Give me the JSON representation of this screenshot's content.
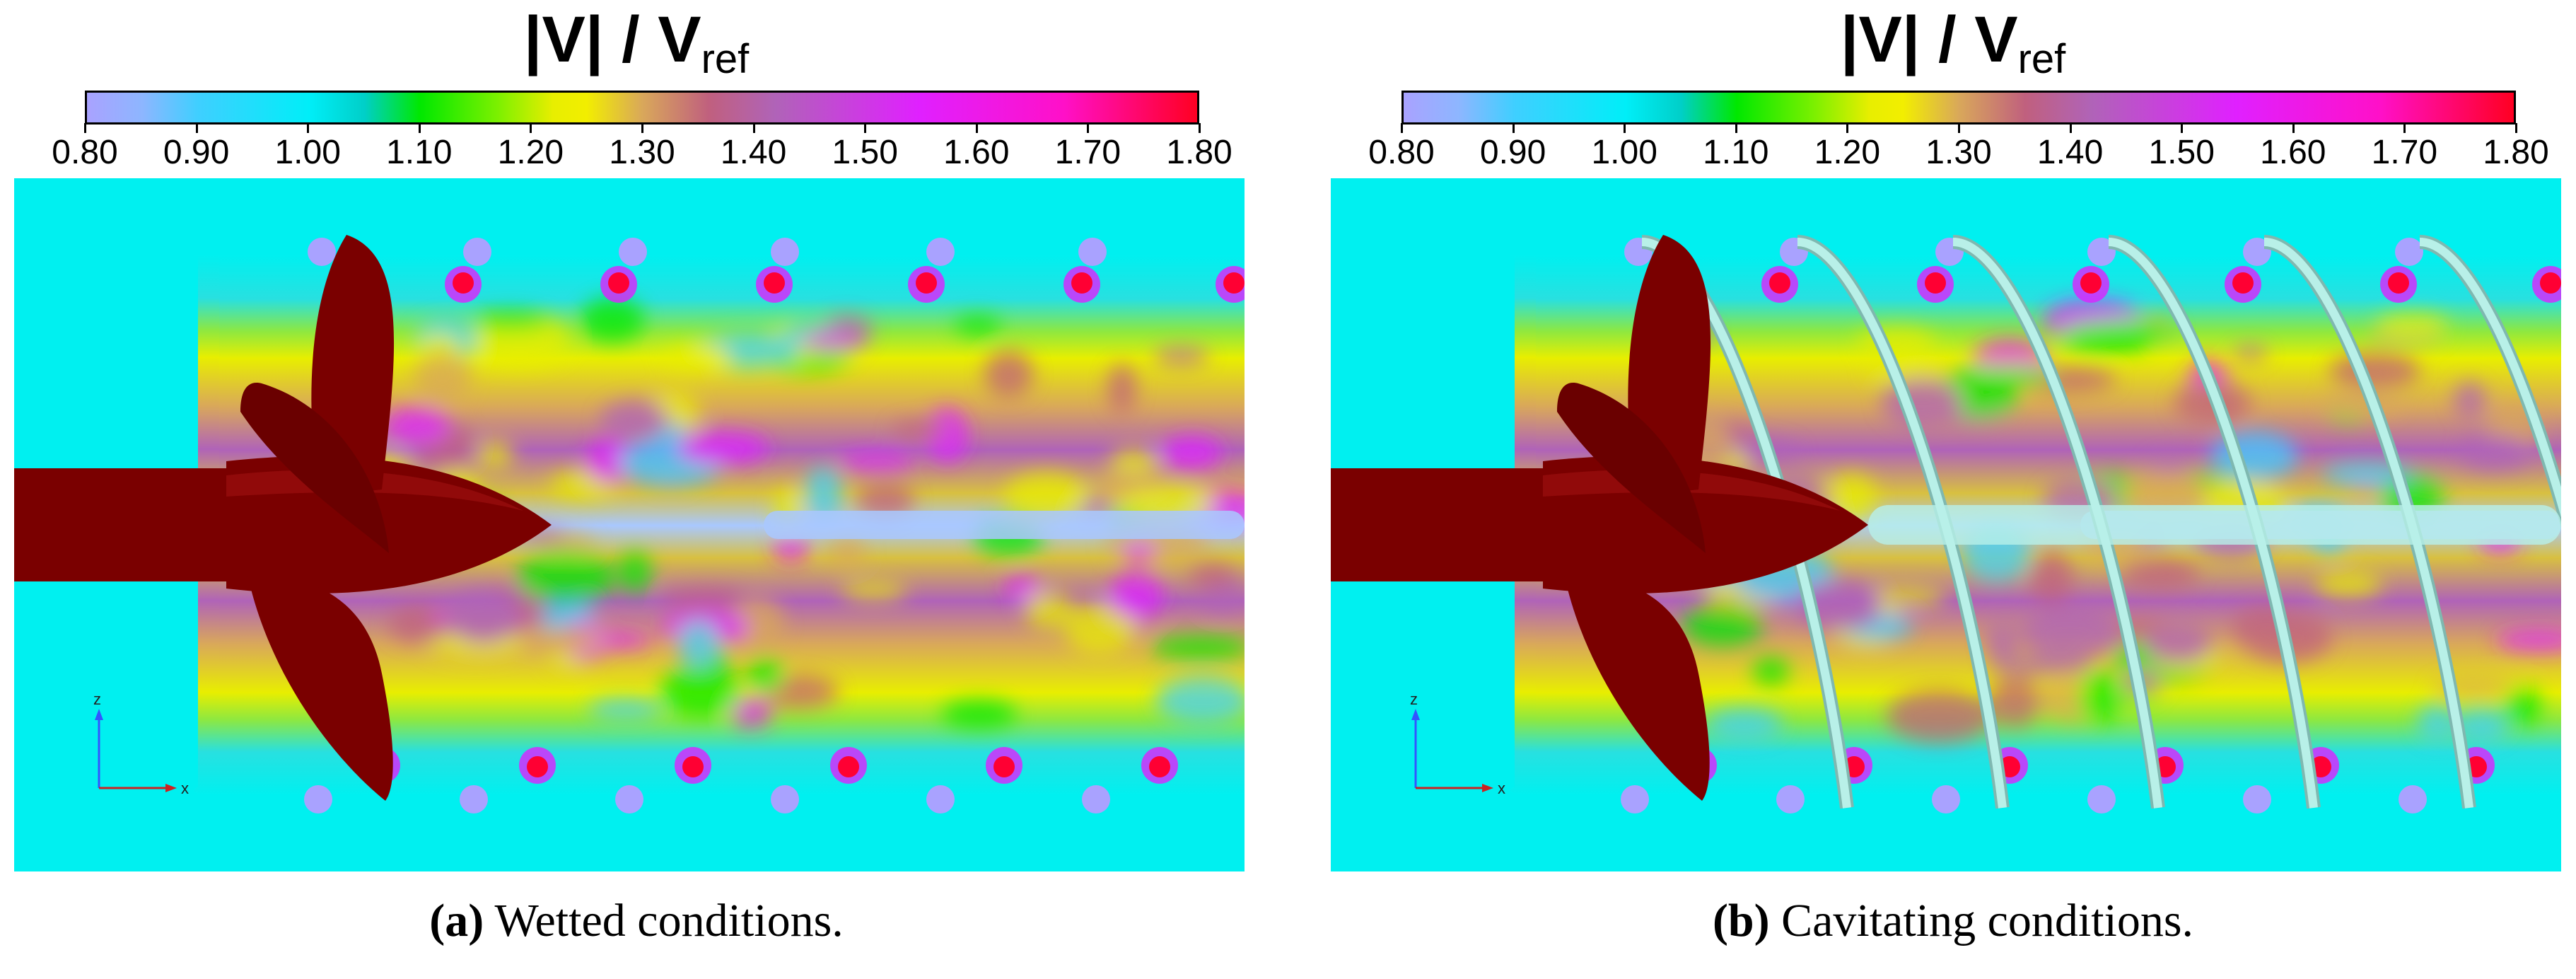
{
  "colorbar": {
    "title_main": "|V| / V",
    "title_sub": "ref",
    "ticks": [
      "0.80",
      "0.90",
      "1.00",
      "1.10",
      "1.20",
      "1.30",
      "1.40",
      "1.50",
      "1.60",
      "1.70",
      "1.80"
    ],
    "min": 0.8,
    "max": 1.8,
    "colors": [
      "#a9a2ff",
      "#3fcfff",
      "#00eef8",
      "#00e800",
      "#e8ee00",
      "#c0607e",
      "#e020ff",
      "#ff0022"
    ]
  },
  "panels": [
    {
      "label": "(a)",
      "caption": "Wetted conditions.",
      "cavitation_tube": false
    },
    {
      "label": "(b)",
      "caption": "Cavitating conditions.",
      "cavitation_tube": true
    }
  ],
  "axes_triad": {
    "vertical": "z",
    "horizontal": "x"
  },
  "colors": {
    "propeller": "#7a0000",
    "propeller_highlight": "#a01010",
    "freestream": "#00f0f0",
    "cavity": "#b8f0e8"
  }
}
